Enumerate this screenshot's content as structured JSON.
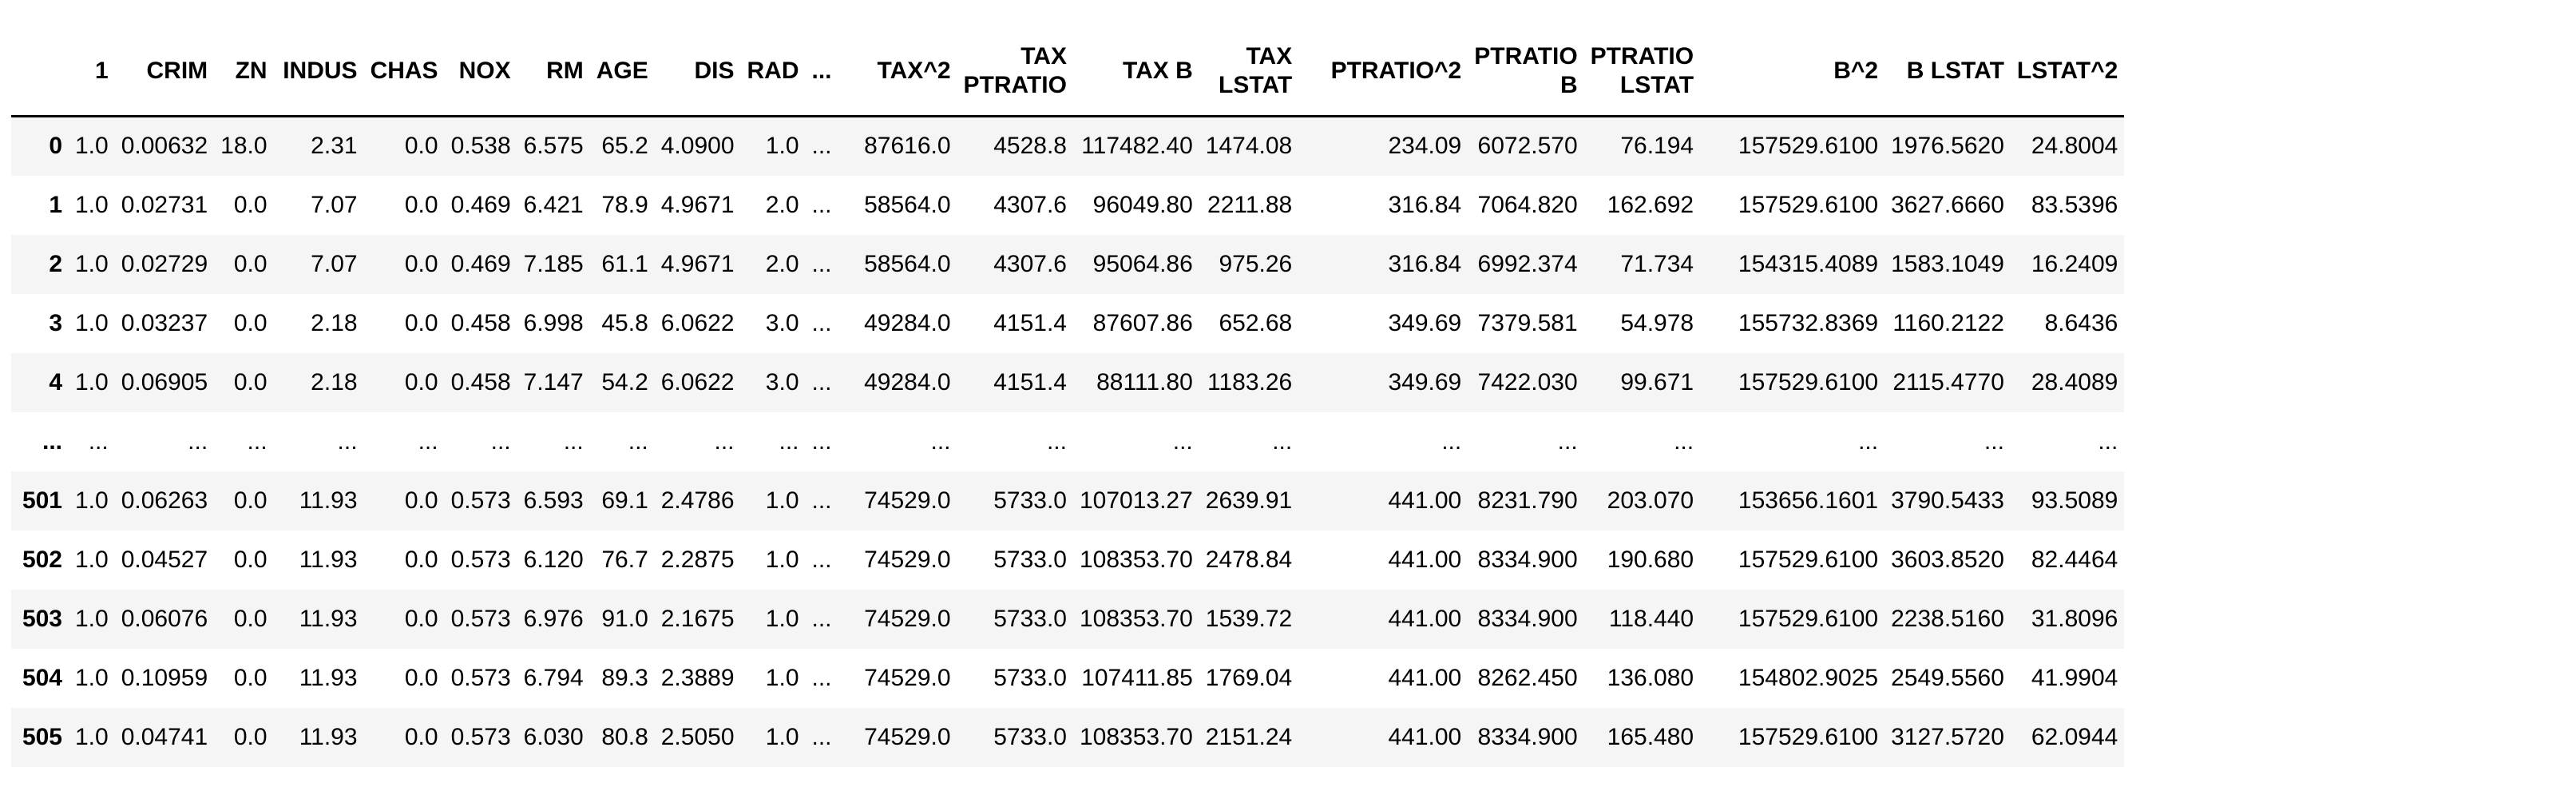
{
  "table": {
    "columns": [
      "",
      "1",
      "CRIM",
      "ZN",
      "INDUS",
      "CHAS",
      "NOX",
      "RM",
      "AGE",
      "DIS",
      "RAD",
      "...",
      "TAX^2",
      "TAX\nPTRATIO",
      "TAX B",
      "TAX\nLSTAT",
      "PTRATIO^2",
      "PTRATIO\nB",
      "PTRATIO\nLSTAT",
      "B^2",
      "B LSTAT",
      "LSTAT^2"
    ],
    "rows": [
      [
        "0",
        "1.0",
        "0.00632",
        "18.0",
        "2.31",
        "0.0",
        "0.538",
        "6.575",
        "65.2",
        "4.0900",
        "1.0",
        "...",
        "87616.0",
        "4528.8",
        "117482.40",
        "1474.08",
        "234.09",
        "6072.570",
        "76.194",
        "157529.6100",
        "1976.5620",
        "24.8004"
      ],
      [
        "1",
        "1.0",
        "0.02731",
        "0.0",
        "7.07",
        "0.0",
        "0.469",
        "6.421",
        "78.9",
        "4.9671",
        "2.0",
        "...",
        "58564.0",
        "4307.6",
        "96049.80",
        "2211.88",
        "316.84",
        "7064.820",
        "162.692",
        "157529.6100",
        "3627.6660",
        "83.5396"
      ],
      [
        "2",
        "1.0",
        "0.02729",
        "0.0",
        "7.07",
        "0.0",
        "0.469",
        "7.185",
        "61.1",
        "4.9671",
        "2.0",
        "...",
        "58564.0",
        "4307.6",
        "95064.86",
        "975.26",
        "316.84",
        "6992.374",
        "71.734",
        "154315.4089",
        "1583.1049",
        "16.2409"
      ],
      [
        "3",
        "1.0",
        "0.03237",
        "0.0",
        "2.18",
        "0.0",
        "0.458",
        "6.998",
        "45.8",
        "6.0622",
        "3.0",
        "...",
        "49284.0",
        "4151.4",
        "87607.86",
        "652.68",
        "349.69",
        "7379.581",
        "54.978",
        "155732.8369",
        "1160.2122",
        "8.6436"
      ],
      [
        "4",
        "1.0",
        "0.06905",
        "0.0",
        "2.18",
        "0.0",
        "0.458",
        "7.147",
        "54.2",
        "6.0622",
        "3.0",
        "...",
        "49284.0",
        "4151.4",
        "88111.80",
        "1183.26",
        "349.69",
        "7422.030",
        "99.671",
        "157529.6100",
        "2115.4770",
        "28.4089"
      ],
      [
        "...",
        "...",
        "...",
        "...",
        "...",
        "...",
        "...",
        "...",
        "...",
        "...",
        "...",
        "...",
        "...",
        "...",
        "...",
        "...",
        "...",
        "...",
        "...",
        "...",
        "...",
        "..."
      ],
      [
        "501",
        "1.0",
        "0.06263",
        "0.0",
        "11.93",
        "0.0",
        "0.573",
        "6.593",
        "69.1",
        "2.4786",
        "1.0",
        "...",
        "74529.0",
        "5733.0",
        "107013.27",
        "2639.91",
        "441.00",
        "8231.790",
        "203.070",
        "153656.1601",
        "3790.5433",
        "93.5089"
      ],
      [
        "502",
        "1.0",
        "0.04527",
        "0.0",
        "11.93",
        "0.0",
        "0.573",
        "6.120",
        "76.7",
        "2.2875",
        "1.0",
        "...",
        "74529.0",
        "5733.0",
        "108353.70",
        "2478.84",
        "441.00",
        "8334.900",
        "190.680",
        "157529.6100",
        "3603.8520",
        "82.4464"
      ],
      [
        "503",
        "1.0",
        "0.06076",
        "0.0",
        "11.93",
        "0.0",
        "0.573",
        "6.976",
        "91.0",
        "2.1675",
        "1.0",
        "...",
        "74529.0",
        "5733.0",
        "108353.70",
        "1539.72",
        "441.00",
        "8334.900",
        "118.440",
        "157529.6100",
        "2238.5160",
        "31.8096"
      ],
      [
        "504",
        "1.0",
        "0.10959",
        "0.0",
        "11.93",
        "0.0",
        "0.573",
        "6.794",
        "89.3",
        "2.3889",
        "1.0",
        "...",
        "74529.0",
        "5733.0",
        "107411.85",
        "1769.04",
        "441.00",
        "8262.450",
        "136.080",
        "154802.9025",
        "2549.5560",
        "41.9904"
      ],
      [
        "505",
        "1.0",
        "0.04741",
        "0.0",
        "11.93",
        "0.0",
        "0.573",
        "6.030",
        "80.8",
        "2.5050",
        "1.0",
        "...",
        "74529.0",
        "5733.0",
        "108353.70",
        "2151.24",
        "441.00",
        "8334.900",
        "165.480",
        "157529.6100",
        "3127.5720",
        "62.0944"
      ]
    ]
  }
}
